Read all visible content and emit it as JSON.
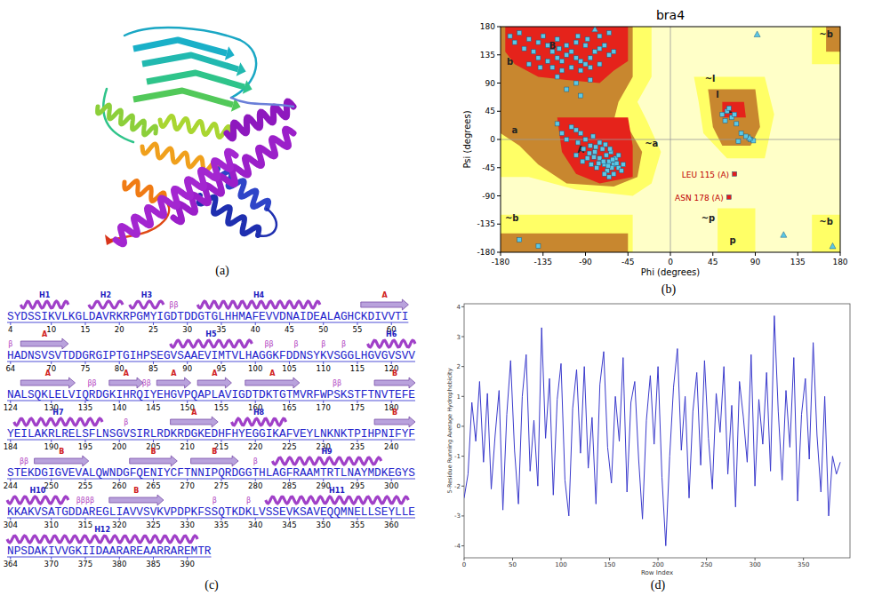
{
  "panel_labels": [
    "(a)",
    "(b)",
    "(c)",
    "(d)"
  ],
  "chart_data": [
    {
      "type": "scatter",
      "title": "bra4",
      "x_label": "Phi (degrees)",
      "y_label": "Psi (degrees)",
      "xlim": [
        -180,
        180
      ],
      "ylim": [
        -180,
        180
      ],
      "xticks": [
        -180,
        -135,
        -90,
        -45,
        0,
        45,
        90,
        135,
        180
      ],
      "yticks": [
        -180,
        -135,
        -90,
        -45,
        0,
        45,
        90,
        135,
        180
      ],
      "series": [
        {
          "marker": "square",
          "color": "#5bc8e6",
          "x": [
            -160,
            -150,
            -140,
            -130,
            -125,
            -120,
            -115,
            -110,
            -105,
            -100,
            -95,
            -90,
            -85,
            -80,
            -75,
            -70,
            -135,
            -145,
            -155,
            -120,
            -110,
            -100,
            -90,
            -130,
            -140,
            -125,
            -115,
            -105,
            -95,
            -85,
            -75,
            -65,
            -60,
            -150,
            -165,
            -170,
            -138,
            -118,
            -98,
            -88,
            -100,
            -110,
            -95,
            -85,
            -120,
            -60,
            -62,
            -65,
            -58,
            -70,
            -67,
            -63,
            -75,
            -80,
            -85,
            -90,
            -95,
            -100,
            -105,
            -72,
            -55,
            -68,
            -78,
            -88,
            -92,
            -98,
            -60,
            -65,
            -70,
            -75,
            -82,
            -57,
            -61,
            -66,
            -71,
            -76,
            -81,
            -86,
            -93,
            -100,
            -110,
            -115,
            -120,
            -52,
            -50,
            -64,
            -69,
            -79,
            -84,
            -55,
            55,
            60,
            65,
            58,
            70,
            75,
            62,
            80,
            85,
            68,
            72,
            88,
            -75,
            -65,
            -160,
            -140
          ],
          "values": [
            170,
            160,
            155,
            150,
            140,
            130,
            125,
            135,
            140,
            130,
            125,
            120,
            130,
            140,
            145,
            150,
            165,
            140,
            145,
            160,
            150,
            155,
            150,
            125,
            130,
            115,
            110,
            115,
            110,
            115,
            120,
            135,
            140,
            120,
            155,
            165,
            115,
            145,
            165,
            160,
            90,
            80,
            70,
            95,
            100,
            -40,
            -45,
            -35,
            -30,
            -40,
            -50,
            -20,
            -30,
            -20,
            -10,
            0,
            10,
            15,
            20,
            -15,
            -45,
            -25,
            -45,
            -30,
            -15,
            -5,
            -55,
            -60,
            -55,
            -5,
            5,
            -38,
            -32,
            -42,
            -35,
            -38,
            -28,
            -22,
            -35,
            -25,
            0,
            10,
            25,
            -50,
            -40,
            -15,
            -8,
            -12,
            -40,
            -25,
            40,
            45,
            35,
            30,
            25,
            10,
            50,
            5,
            0,
            40,
            -3,
            -2,
            165,
            170,
            -160,
            -170
          ]
        },
        {
          "marker": "triangle",
          "color": "#5bc8e6",
          "x": [
            120,
            92,
            -80,
            84,
            172
          ],
          "values": [
            -152,
            168,
            176,
            3,
            -170
          ]
        },
        {
          "marker": "square",
          "color": "#e31a1c",
          "x": [
            68,
            62
          ],
          "values": [
            -55,
            -92
          ]
        }
      ],
      "annotations": [
        {
          "text": "LEU 115 (A)",
          "x": 68,
          "y": -55
        },
        {
          "text": "ASN 178 (A)",
          "x": 62,
          "y": -92
        }
      ],
      "region_labels": [
        {
          "text": "B",
          "x": -125,
          "y": 150
        },
        {
          "text": "b",
          "x": -170,
          "y": 125
        },
        {
          "text": "A",
          "x": -95,
          "y": -15
        },
        {
          "text": "a",
          "x": -165,
          "y": 15
        },
        {
          "text": "L",
          "x": 62,
          "y": 48
        },
        {
          "text": "l",
          "x": 50,
          "y": 72
        },
        {
          "text": "p",
          "x": 66,
          "y": -160
        },
        {
          "text": "~p",
          "x": 40,
          "y": -125
        },
        {
          "text": "~b",
          "x": 165,
          "y": 168
        },
        {
          "text": "~b",
          "x": -168,
          "y": -125
        },
        {
          "text": "~b",
          "x": 165,
          "y": -130
        },
        {
          "text": "~l",
          "x": 42,
          "y": 98
        },
        {
          "text": "~a",
          "x": -20,
          "y": -5
        }
      ]
    },
    {
      "type": "line",
      "x_label": "Row Index",
      "y_label": "5-Residue Running Average Hydrophobicity",
      "xlim": [
        0,
        398
      ],
      "ylim": [
        -4.4,
        4.1
      ],
      "xticks": [
        0,
        50,
        100,
        150,
        200,
        250,
        300,
        350
      ],
      "yticks": [
        -4,
        -3,
        -2,
        -1,
        0,
        1,
        2,
        3,
        4
      ],
      "x": [
        0,
        4,
        8,
        12,
        16,
        20,
        24,
        28,
        32,
        36,
        40,
        44,
        48,
        52,
        56,
        60,
        64,
        68,
        72,
        76,
        80,
        84,
        88,
        92,
        96,
        100,
        104,
        108,
        112,
        116,
        120,
        124,
        128,
        132,
        136,
        140,
        144,
        148,
        152,
        156,
        160,
        164,
        168,
        172,
        176,
        180,
        184,
        188,
        192,
        196,
        200,
        204,
        208,
        212,
        216,
        220,
        224,
        228,
        232,
        236,
        240,
        244,
        248,
        252,
        256,
        260,
        264,
        268,
        272,
        276,
        280,
        284,
        288,
        292,
        296,
        300,
        304,
        308,
        312,
        316,
        320,
        324,
        328,
        332,
        336,
        340,
        344,
        348,
        352,
        356,
        360,
        364,
        368,
        372,
        376,
        380,
        384,
        388
      ],
      "series": [
        {
          "color": "#3a3acc",
          "values": [
            -2.4,
            -1.6,
            0.8,
            -0.5,
            1.5,
            -1.2,
            1.1,
            -2.1,
            -0.3,
            1.2,
            -2.8,
            0.4,
            2.2,
            -0.8,
            -2.6,
            1.0,
            2.4,
            -1.5,
            0.2,
            -2.0,
            3.3,
            -0.4,
            1.6,
            -2.3,
            0.9,
            2.1,
            -1.8,
            -3.0,
            0.6,
            1.9,
            -0.9,
            2.0,
            -1.4,
            0.3,
            -2.6,
            1.4,
            2.5,
            -0.7,
            -1.9,
            1.0,
            -0.5,
            2.3,
            -2.2,
            0.8,
            1.5,
            -1.1,
            -3.1,
            0.2,
            1.7,
            -0.6,
            2.0,
            -1.7,
            -4.0,
            -1.0,
            1.3,
            2.6,
            -0.8,
            1.0,
            -2.4,
            0.5,
            1.8,
            -1.3,
            2.2,
            -0.4,
            -2.1,
            1.1,
            -0.2,
            2.0,
            -1.6,
            0.7,
            -2.7,
            1.5,
            0.3,
            -1.2,
            2.4,
            -2.0,
            0.9,
            -0.6,
            1.8,
            -1.5,
            3.7,
            0.5,
            -1.8,
            1.2,
            -0.7,
            2.3,
            -2.5,
            0.4,
            1.6,
            -1.1,
            2.8,
            -0.3,
            -2.2,
            1.0,
            -3.0,
            -1.0,
            -1.6,
            -1.2
          ]
        }
      ]
    }
  ],
  "sequence_map": {
    "rows": [
      {
        "start": 4,
        "sequence": "SYDSSIKVLKGLDAVRKRPGMYIGDTDDGTGLHHMAFEVVDNAIDEALAGHCKDIVVTI",
        "ticks": [
          4,
          10,
          15,
          20,
          25,
          30,
          35,
          40,
          45,
          50,
          55,
          60
        ]
      },
      {
        "start": 64,
        "sequence": "HADNSVSVTDDGRGIPTGIHPSEGVSAAEVIMTVLHAGGKFDDNSYKVSGGLHGVGVSVV",
        "ticks": [
          64,
          70,
          75,
          80,
          85,
          90,
          95,
          100,
          105,
          110,
          115,
          120
        ]
      },
      {
        "start": 124,
        "sequence": "NALSQKLELVIQRDGKIHRQIYEHGVPQAPLAVIGDTDKTGTMVRFWPSKSTFTNVTEFE",
        "ticks": [
          124,
          130,
          135,
          140,
          145,
          150,
          155,
          160,
          165,
          170,
          175,
          180
        ]
      },
      {
        "start": 184,
        "sequence": "YEILAKRLRELSFLNSGVSIRLRDKRDGKEDHFHYEGGIKAFVEYLNKNKTPIHPNIFYF",
        "ticks": [
          184,
          190,
          195,
          200,
          205,
          210,
          215,
          220,
          225,
          230,
          235,
          240
        ]
      },
      {
        "start": 244,
        "sequence": "STEKDGIGVEVALQWNDGFQENIYCFTNNIPQRDGGTHLAGFRAAMTRTLNAYMDKEGYS",
        "ticks": [
          244,
          250,
          255,
          260,
          265,
          270,
          275,
          280,
          285,
          290,
          295,
          300
        ]
      },
      {
        "start": 304,
        "sequence": "KKAKVSATGDDAREGLIAVVSVKVPDPKFSSQTKDKLVSSEVKSAVEQQMNELLSEYLLE",
        "ticks": [
          304,
          310,
          315,
          320,
          325,
          330,
          335,
          340,
          345,
          350,
          355,
          360
        ]
      },
      {
        "start": 364,
        "sequence": "NPSDAKIVVGKIIDAARAREAARRAREMTR",
        "ticks": [
          364,
          370,
          375,
          380,
          385,
          390
        ]
      }
    ],
    "helices": [
      {
        "label": "H1",
        "start": 6,
        "end": 12
      },
      {
        "label": "H2",
        "start": 16,
        "end": 20
      },
      {
        "label": "H3",
        "start": 22,
        "end": 26
      },
      {
        "label": "H4",
        "start": 32,
        "end": 49
      },
      {
        "label": "H5",
        "start": 88,
        "end": 99
      },
      {
        "label": "H6",
        "start": 117,
        "end": 123
      },
      {
        "label": "H7",
        "start": 185,
        "end": 197
      },
      {
        "label": "H8",
        "start": 217,
        "end": 224
      },
      {
        "label": "H9",
        "start": 283,
        "end": 298
      },
      {
        "label": "H10",
        "start": 304,
        "end": 312
      },
      {
        "label": "H11",
        "start": 342,
        "end": 362
      },
      {
        "label": "H12",
        "start": 364,
        "end": 391
      }
    ],
    "strands": [
      {
        "label": "A",
        "start": 56,
        "end": 62
      },
      {
        "label": "A",
        "start": 66,
        "end": 72
      },
      {
        "label": "A",
        "start": 126,
        "end": 133
      },
      {
        "label": "A",
        "start": 139,
        "end": 143
      },
      {
        "label": "A",
        "start": 146,
        "end": 150
      },
      {
        "label": "A",
        "start": 152,
        "end": 156
      },
      {
        "label": "A",
        "start": 159,
        "end": 166
      },
      {
        "label": "B",
        "start": 178,
        "end": 183
      },
      {
        "label": "A",
        "start": 208,
        "end": 214
      },
      {
        "label": "B",
        "start": 238,
        "end": 243
      },
      {
        "label": "B",
        "start": 248,
        "end": 255
      },
      {
        "label": "B",
        "start": 262,
        "end": 268
      },
      {
        "label": "B",
        "start": 271,
        "end": 277
      },
      {
        "label": "B",
        "start": 319,
        "end": 326
      }
    ],
    "turns": [
      {
        "label": "ββ",
        "position": 28
      },
      {
        "label": "β",
        "position": 64
      },
      {
        "label": "ββ",
        "position": 102
      },
      {
        "label": "β",
        "position": 106
      },
      {
        "label": "β",
        "position": 110
      },
      {
        "label": "β",
        "position": 113
      },
      {
        "label": "ββ",
        "position": 136
      },
      {
        "label": "ββ",
        "position": 144
      },
      {
        "label": "ββ",
        "position": 172
      },
      {
        "label": "β",
        "position": 201
      },
      {
        "label": "ββ",
        "position": 246
      },
      {
        "label": "β",
        "position": 280
      },
      {
        "label": "ββββ",
        "position": 315
      },
      {
        "label": "β",
        "position": 334
      },
      {
        "label": "β",
        "position": 339
      }
    ]
  }
}
